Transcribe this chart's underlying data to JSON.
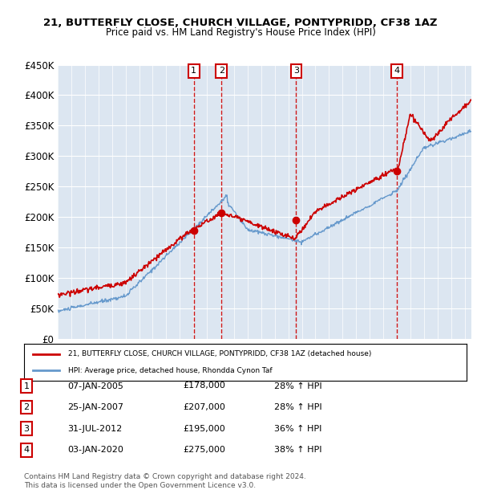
{
  "title1": "21, BUTTERFLY CLOSE, CHURCH VILLAGE, PONTYPRIDD, CF38 1AZ",
  "title2": "Price paid vs. HM Land Registry's House Price Index (HPI)",
  "ylabel": "",
  "xlabel": "",
  "ylim": [
    0,
    450000
  ],
  "yticks": [
    0,
    50000,
    100000,
    150000,
    200000,
    250000,
    300000,
    350000,
    400000,
    450000
  ],
  "ytick_labels": [
    "£0",
    "£50K",
    "£100K",
    "£150K",
    "£200K",
    "£250K",
    "£300K",
    "£350K",
    "£400K",
    "£450K"
  ],
  "red_color": "#cc0000",
  "blue_color": "#6699cc",
  "bg_color": "#dce6f1",
  "sale_dates": [
    2005.03,
    2007.07,
    2012.58,
    2020.01
  ],
  "sale_prices": [
    178000,
    207000,
    195000,
    275000
  ],
  "sale_labels": [
    "1",
    "2",
    "3",
    "4"
  ],
  "legend_line1": "21, BUTTERFLY CLOSE, CHURCH VILLAGE, PONTYPRIDD, CF38 1AZ (detached house)",
  "legend_line2": "HPI: Average price, detached house, Rhondda Cynon Taf",
  "table_rows": [
    [
      "1",
      "07-JAN-2005",
      "£178,000",
      "28% ↑ HPI"
    ],
    [
      "2",
      "25-JAN-2007",
      "£207,000",
      "28% ↑ HPI"
    ],
    [
      "3",
      "31-JUL-2012",
      "£195,000",
      "36% ↑ HPI"
    ],
    [
      "4",
      "03-JAN-2020",
      "£275,000",
      "38% ↑ HPI"
    ]
  ],
  "footnote": "Contains HM Land Registry data © Crown copyright and database right 2024.\nThis data is licensed under the Open Government Licence v3.0.",
  "xlim_start": 1995.0,
  "xlim_end": 2025.5
}
